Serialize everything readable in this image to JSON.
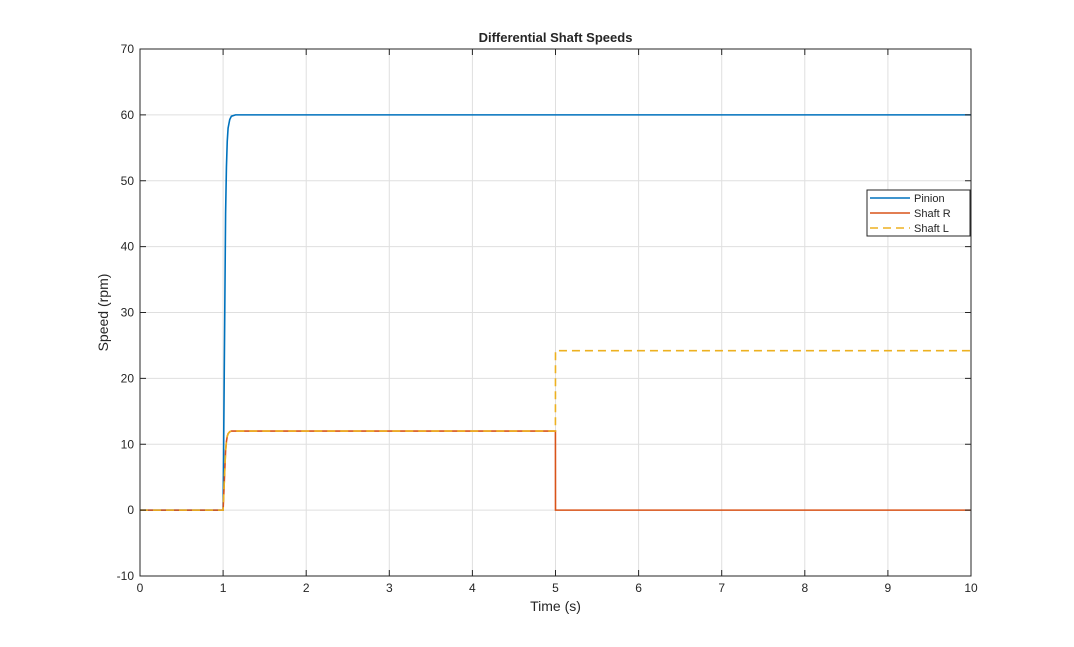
{
  "chart_data": {
    "type": "line",
    "title": "Differential Shaft Speeds",
    "xlabel": "Time (s)",
    "ylabel": "Speed (rpm)",
    "xlim": [
      0,
      10
    ],
    "ylim": [
      -10,
      70
    ],
    "xticks": [
      0,
      1,
      2,
      3,
      4,
      5,
      6,
      7,
      8,
      9,
      10
    ],
    "yticks": [
      -10,
      0,
      10,
      20,
      30,
      40,
      50,
      60,
      70
    ],
    "grid": true,
    "legend_position": "right",
    "series": [
      {
        "name": "Pinion",
        "color": "#0072BD",
        "dash": "solid",
        "x": [
          0,
          1.0,
          1.02,
          1.03,
          1.04,
          1.05,
          1.06,
          1.08,
          1.1,
          1.15,
          1.2,
          10
        ],
        "y": [
          0,
          0,
          30,
          45,
          52,
          56,
          58,
          59.3,
          59.8,
          60,
          60,
          60
        ]
      },
      {
        "name": "Shaft R",
        "color": "#D95319",
        "dash": "solid",
        "x": [
          0,
          1.0,
          1.02,
          1.03,
          1.04,
          1.05,
          1.06,
          1.08,
          1.1,
          1.15,
          1.2,
          4.999,
          5.0,
          10
        ],
        "y": [
          0,
          0,
          6,
          9,
          10.4,
          11.2,
          11.6,
          11.9,
          12,
          12,
          12,
          12,
          0,
          0
        ]
      },
      {
        "name": "Shaft L",
        "color": "#EDB120",
        "dash": "dashed",
        "x": [
          0,
          1.0,
          1.02,
          1.03,
          1.04,
          1.05,
          1.06,
          1.08,
          1.1,
          1.15,
          1.2,
          4.999,
          5.0,
          10
        ],
        "y": [
          0,
          0,
          6,
          9,
          10.4,
          11.2,
          11.6,
          11.9,
          12,
          12,
          12,
          12,
          24.2,
          24.2
        ]
      }
    ]
  }
}
